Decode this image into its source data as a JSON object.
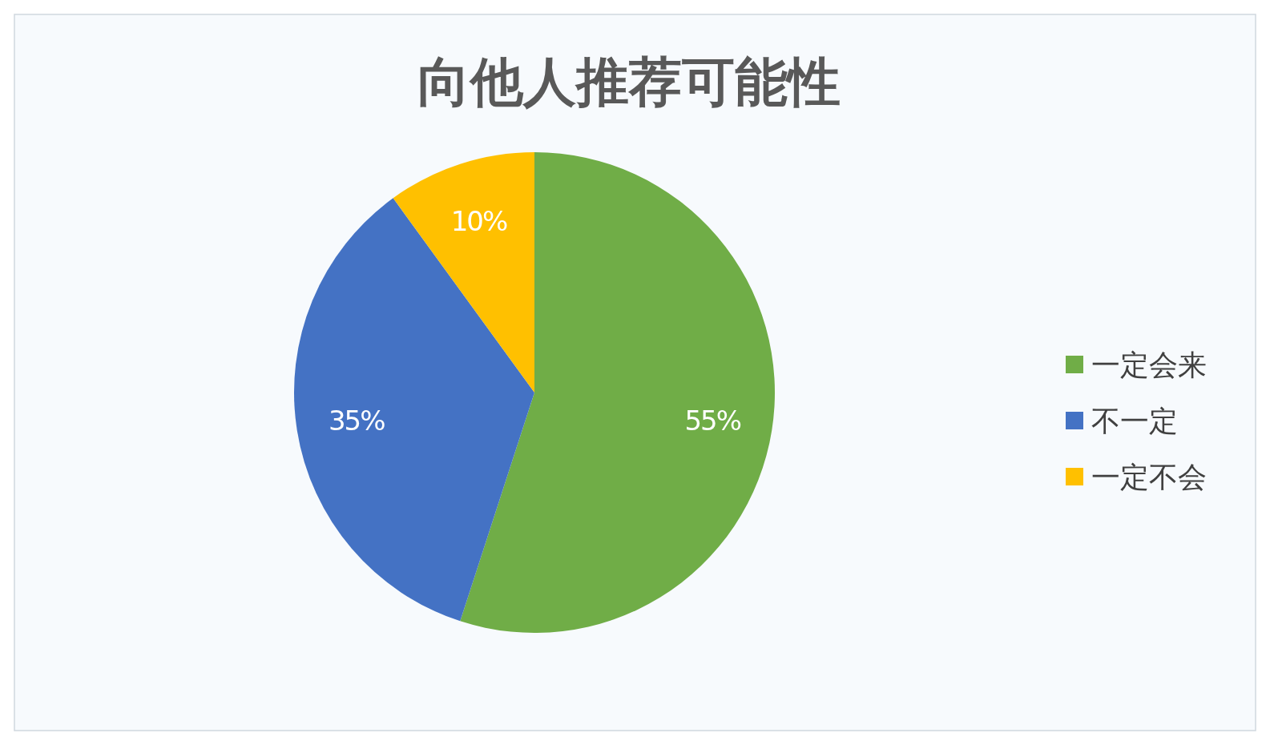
{
  "chart_data": {
    "type": "pie",
    "title": "向他人推荐可能性",
    "categories": [
      "一定会来",
      "不一定",
      "一定不会"
    ],
    "values": [
      55,
      35,
      10
    ],
    "value_labels": [
      "55%",
      "35%",
      "10%"
    ],
    "colors": [
      "#70ad47",
      "#4472c4",
      "#ffc000"
    ],
    "legend": "right"
  }
}
